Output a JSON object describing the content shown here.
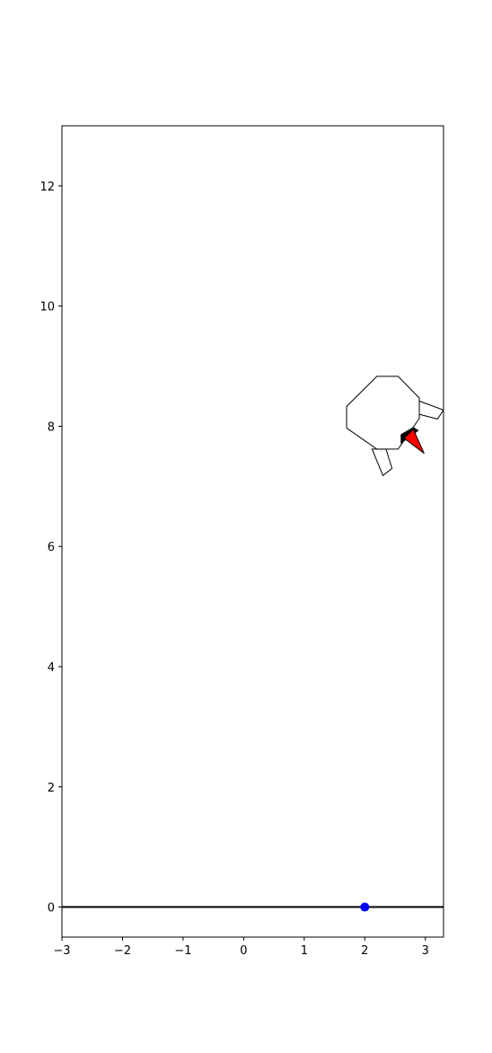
{
  "figure": {
    "background": "#ffffff"
  },
  "axes": {
    "x_ticks": [
      "−3",
      "−2",
      "−1",
      "0",
      "1",
      "2",
      "3"
    ],
    "y_ticks": [
      "0",
      "2",
      "4",
      "6",
      "8",
      "10",
      "12"
    ]
  },
  "chart_data": {
    "type": "scatter",
    "xlim": [
      -3,
      3.3
    ],
    "ylim": [
      -0.5,
      13
    ],
    "x_tick_values": [
      -3,
      -2,
      -1,
      0,
      1,
      2,
      3
    ],
    "y_tick_values": [
      0,
      2,
      4,
      6,
      8,
      10,
      12
    ],
    "ground": {
      "y": 0,
      "color": "#000000"
    },
    "landing_target": {
      "x": 2,
      "y": 0,
      "color": "#0000ff"
    },
    "lander": {
      "body_color": "#ffffff",
      "edge_color": "#000000",
      "body_polygon": [
        [
          2.2,
          8.83
        ],
        [
          2.55,
          8.83
        ],
        [
          2.9,
          8.47
        ],
        [
          2.9,
          8.13
        ],
        [
          2.55,
          7.62
        ],
        [
          2.2,
          7.62
        ],
        [
          1.7,
          7.97
        ],
        [
          1.7,
          8.33
        ]
      ],
      "leg_left": [
        [
          2.12,
          7.62
        ],
        [
          2.35,
          7.62
        ],
        [
          2.45,
          7.3
        ],
        [
          2.3,
          7.18
        ]
      ],
      "leg_right": [
        [
          2.9,
          8.42
        ],
        [
          3.3,
          8.27
        ],
        [
          3.2,
          8.12
        ],
        [
          2.9,
          8.2
        ]
      ],
      "thruster_color": "#ff0000",
      "thruster_nozzle_color": "#000000",
      "thruster_flame": [
        [
          2.65,
          7.8
        ],
        [
          2.8,
          7.95
        ],
        [
          2.98,
          7.55
        ]
      ],
      "thruster_nozzle": [
        [
          2.6,
          7.72
        ],
        [
          2.6,
          7.86
        ],
        [
          2.8,
          7.98
        ],
        [
          2.88,
          7.93
        ]
      ]
    }
  }
}
